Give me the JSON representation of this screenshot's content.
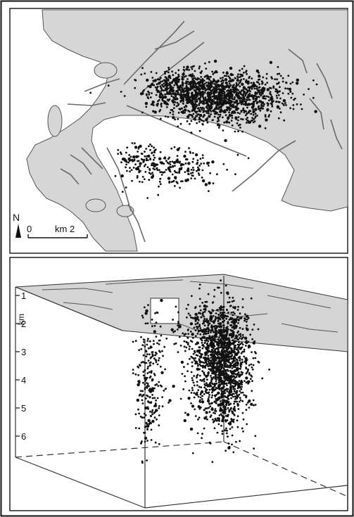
{
  "figure": {
    "map_panel": {
      "north_label": "N",
      "scale_zero": "0",
      "scale_unit": "km 2",
      "colors": {
        "land": "#d6d6d6",
        "sea": "#ffffff",
        "fault": "#6a6a6a",
        "event": "#111111"
      }
    },
    "block_panel": {
      "depth_unit": "km",
      "depth_ticks": [
        "1",
        "2",
        "3",
        "4",
        "5",
        "6"
      ],
      "colors": {
        "top_face": "#d4d4d4",
        "edge": "#333333",
        "event": "#111111"
      }
    }
  }
}
